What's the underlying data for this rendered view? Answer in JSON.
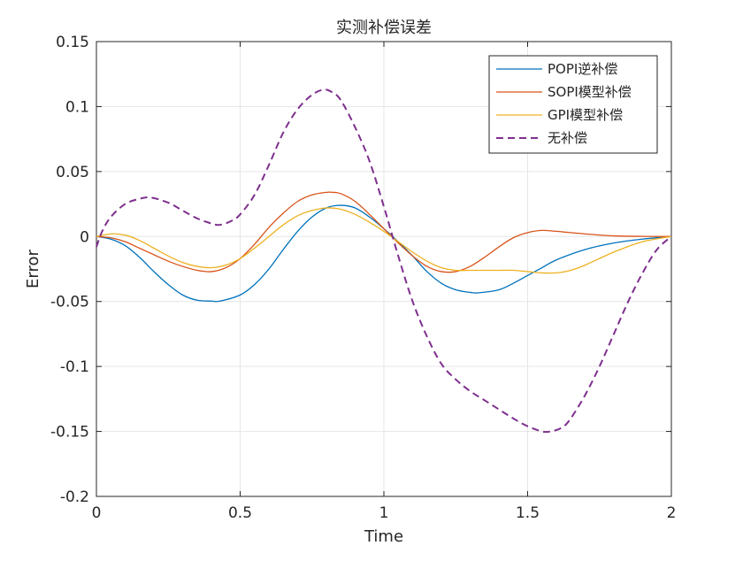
{
  "chart_data": {
    "type": "line",
    "title": "实测补偿误差",
    "xlabel": "Time",
    "ylabel": "Error",
    "xlim": [
      0,
      2
    ],
    "ylim": [
      -0.2,
      0.15
    ],
    "xticks": [
      0,
      0.5,
      1,
      1.5,
      2
    ],
    "xtick_labels": [
      "0",
      "0.5",
      "1",
      "1.5",
      "2"
    ],
    "yticks": [
      -0.2,
      -0.15,
      -0.1,
      -0.05,
      0,
      0.05,
      0.1,
      0.15
    ],
    "ytick_labels": [
      "-0.2",
      "-0.15",
      "-0.1",
      "-0.05",
      "0",
      "0.05",
      "0.1",
      "0.15"
    ],
    "grid": true,
    "legend_position": "top-right",
    "series": [
      {
        "name": "POPI逆补偿",
        "color": "#0072BD",
        "dash": "solid",
        "x": [
          0,
          0.05,
          0.1,
          0.15,
          0.2,
          0.25,
          0.3,
          0.35,
          0.4,
          0.43,
          0.5,
          0.55,
          0.6,
          0.65,
          0.7,
          0.75,
          0.8,
          0.85,
          0.9,
          0.95,
          1.0,
          1.05,
          1.1,
          1.15,
          1.2,
          1.25,
          1.3,
          1.33,
          1.4,
          1.45,
          1.5,
          1.55,
          1.6,
          1.7,
          1.8,
          1.9,
          2.0
        ],
        "y": [
          0,
          -0.002,
          -0.007,
          -0.016,
          -0.027,
          -0.037,
          -0.045,
          -0.049,
          -0.0497,
          -0.0497,
          -0.045,
          -0.037,
          -0.025,
          -0.01,
          0.004,
          0.015,
          0.022,
          0.024,
          0.022,
          0.015,
          0.006,
          -0.004,
          -0.015,
          -0.027,
          -0.036,
          -0.041,
          -0.043,
          -0.0433,
          -0.041,
          -0.036,
          -0.03,
          -0.024,
          -0.018,
          -0.01,
          -0.005,
          -0.002,
          0
        ]
      },
      {
        "name": "SOPI模型补偿",
        "color": "#D95319",
        "dash": "solid",
        "x": [
          0,
          0.05,
          0.1,
          0.15,
          0.2,
          0.25,
          0.3,
          0.35,
          0.4,
          0.45,
          0.5,
          0.55,
          0.6,
          0.65,
          0.7,
          0.75,
          0.8,
          0.82,
          0.85,
          0.9,
          0.95,
          1.0,
          1.05,
          1.1,
          1.15,
          1.2,
          1.25,
          1.3,
          1.35,
          1.4,
          1.45,
          1.5,
          1.55,
          1.6,
          1.7,
          1.8,
          1.9,
          2.0
        ],
        "y": [
          0,
          -0.001,
          -0.004,
          -0.009,
          -0.014,
          -0.019,
          -0.023,
          -0.026,
          -0.027,
          -0.024,
          -0.017,
          -0.006,
          0.007,
          0.018,
          0.027,
          0.032,
          0.034,
          0.034,
          0.033,
          0.027,
          0.017,
          0.006,
          -0.005,
          -0.015,
          -0.023,
          -0.027,
          -0.027,
          -0.023,
          -0.016,
          -0.008,
          -0.001,
          0.003,
          0.0047,
          0.004,
          0.002,
          0.0005,
          0.0001,
          0
        ]
      },
      {
        "name": "GPI模型补偿",
        "color": "#EDB120",
        "dash": "solid",
        "x": [
          0,
          0.05,
          0.1,
          0.15,
          0.2,
          0.25,
          0.3,
          0.35,
          0.4,
          0.45,
          0.5,
          0.55,
          0.6,
          0.65,
          0.7,
          0.75,
          0.8,
          0.85,
          0.9,
          0.95,
          1.0,
          1.05,
          1.1,
          1.15,
          1.2,
          1.25,
          1.3,
          1.35,
          1.4,
          1.45,
          1.5,
          1.55,
          1.6,
          1.65,
          1.7,
          1.8,
          1.9,
          2.0
        ],
        "y": [
          0,
          0.002,
          0.001,
          -0.003,
          -0.009,
          -0.015,
          -0.02,
          -0.023,
          -0.024,
          -0.022,
          -0.017,
          -0.009,
          0.0,
          0.009,
          0.016,
          0.02,
          0.022,
          0.021,
          0.017,
          0.011,
          0.004,
          -0.004,
          -0.012,
          -0.019,
          -0.024,
          -0.026,
          -0.026,
          -0.026,
          -0.026,
          -0.026,
          -0.027,
          -0.028,
          -0.028,
          -0.026,
          -0.022,
          -0.012,
          -0.004,
          0
        ]
      },
      {
        "name": "无补偿",
        "color": "#7E2F8E",
        "dash": "dashed",
        "x": [
          0,
          0.02,
          0.05,
          0.1,
          0.15,
          0.19,
          0.25,
          0.3,
          0.35,
          0.4,
          0.43,
          0.47,
          0.5,
          0.55,
          0.6,
          0.65,
          0.7,
          0.75,
          0.79,
          0.82,
          0.85,
          0.9,
          0.95,
          1.0,
          1.05,
          1.1,
          1.15,
          1.2,
          1.25,
          1.3,
          1.35,
          1.4,
          1.45,
          1.5,
          1.55,
          1.58,
          1.62,
          1.65,
          1.7,
          1.75,
          1.8,
          1.85,
          1.9,
          1.95,
          2.0
        ],
        "y": [
          -0.008,
          0.004,
          0.015,
          0.025,
          0.029,
          0.03,
          0.026,
          0.02,
          0.014,
          0.01,
          0.009,
          0.012,
          0.017,
          0.032,
          0.055,
          0.08,
          0.098,
          0.109,
          0.113,
          0.111,
          0.105,
          0.084,
          0.058,
          0.023,
          -0.015,
          -0.05,
          -0.077,
          -0.098,
          -0.11,
          -0.119,
          -0.126,
          -0.133,
          -0.14,
          -0.146,
          -0.15,
          -0.15,
          -0.147,
          -0.14,
          -0.122,
          -0.1,
          -0.075,
          -0.05,
          -0.028,
          -0.01,
          0
        ]
      }
    ]
  }
}
